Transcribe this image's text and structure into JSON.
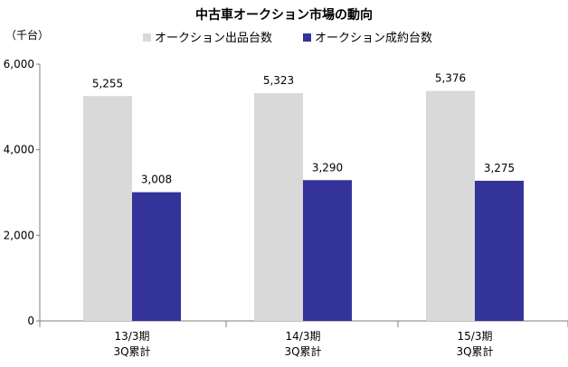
{
  "chart_data": {
    "type": "bar",
    "title": "中古車オークション市場の動向",
    "ylabel": "（千台）",
    "xlabel": "",
    "ylim": [
      0,
      6000
    ],
    "yticks": [
      "0",
      "2,000",
      "4,000",
      "6,000"
    ],
    "ytick_values": [
      0,
      2000,
      4000,
      6000
    ],
    "grid": false,
    "legend_position": "top",
    "categories": [
      [
        "13/3期",
        "3Q累計"
      ],
      [
        "14/3期",
        "3Q累計"
      ],
      [
        "15/3期",
        "3Q累計"
      ]
    ],
    "series": [
      {
        "name": "オークション出品台数",
        "color": "#d9d9d9",
        "values": [
          5255,
          5323,
          5376
        ],
        "labels": [
          "5,255",
          "5,323",
          "5,376"
        ]
      },
      {
        "name": "オークション成約台数",
        "color": "#333399",
        "values": [
          3008,
          3290,
          3275
        ],
        "labels": [
          "3,008",
          "3,290",
          "3,275"
        ]
      }
    ]
  }
}
